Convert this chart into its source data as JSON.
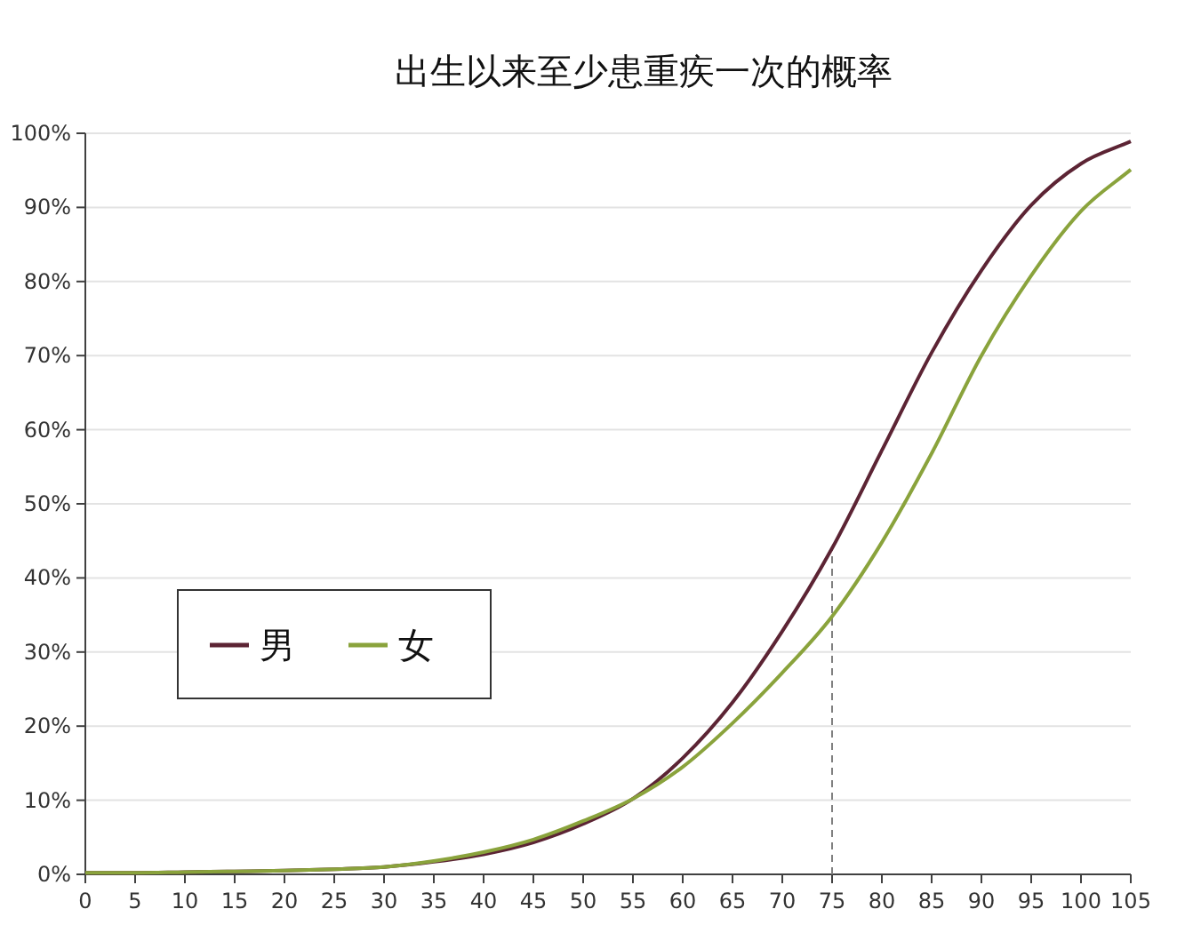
{
  "chart_data": {
    "type": "line",
    "title": "出生以来至少患重疾一次的概率",
    "x": [
      0,
      5,
      10,
      15,
      20,
      25,
      30,
      35,
      40,
      45,
      50,
      55,
      60,
      65,
      70,
      75,
      80,
      85,
      90,
      95,
      100,
      105
    ],
    "series": [
      {
        "name": "男",
        "color": "#5c2434",
        "values": [
          0.2,
          0.2,
          0.3,
          0.4,
          0.5,
          0.7,
          1.0,
          1.7,
          2.7,
          4.3,
          6.8,
          10.2,
          15.7,
          23.2,
          32.8,
          44,
          57.2,
          70.4,
          81.5,
          90.3,
          95.9,
          98.9
        ]
      },
      {
        "name": "女",
        "color": "#8aa33c",
        "values": [
          0.2,
          0.2,
          0.3,
          0.4,
          0.5,
          0.7,
          1.0,
          1.8,
          3.0,
          4.7,
          7.2,
          10.2,
          14.5,
          20.4,
          27.2,
          34.8,
          44.8,
          56.8,
          70,
          80.8,
          89.5,
          95.1
        ]
      }
    ],
    "xlim": [
      0,
      105
    ],
    "xticks": [
      0,
      5,
      10,
      15,
      20,
      25,
      30,
      35,
      40,
      45,
      50,
      55,
      60,
      65,
      70,
      75,
      80,
      85,
      90,
      95,
      100,
      105
    ],
    "ylim": [
      0,
      100
    ],
    "yticks": [
      {
        "value": 0,
        "label": "0%"
      },
      {
        "value": 10,
        "label": "10%"
      },
      {
        "value": 20,
        "label": "20%"
      },
      {
        "value": 30,
        "label": "30%"
      },
      {
        "value": 40,
        "label": "40%"
      },
      {
        "value": 50,
        "label": "50%"
      },
      {
        "value": 60,
        "label": "60%"
      },
      {
        "value": 70,
        "label": "70%"
      },
      {
        "value": 80,
        "label": "80%"
      },
      {
        "value": 90,
        "label": "90%"
      },
      {
        "value": 100,
        "label": "100%"
      }
    ],
    "ref_lines": [
      {
        "axis": "x",
        "value": 75,
        "color": "#808080",
        "line_style": "dashed"
      }
    ],
    "grid": "y",
    "legend": "left",
    "marker": "none",
    "line_style": "solid"
  }
}
